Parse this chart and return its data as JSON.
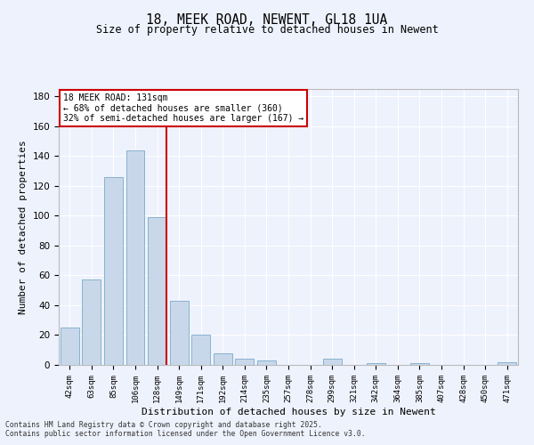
{
  "title": "18, MEEK ROAD, NEWENT, GL18 1UA",
  "subtitle": "Size of property relative to detached houses in Newent",
  "xlabel": "Distribution of detached houses by size in Newent",
  "ylabel": "Number of detached properties",
  "categories": [
    "42sqm",
    "63sqm",
    "85sqm",
    "106sqm",
    "128sqm",
    "149sqm",
    "171sqm",
    "192sqm",
    "214sqm",
    "235sqm",
    "257sqm",
    "278sqm",
    "299sqm",
    "321sqm",
    "342sqm",
    "364sqm",
    "385sqm",
    "407sqm",
    "428sqm",
    "450sqm",
    "471sqm"
  ],
  "values": [
    25,
    57,
    126,
    144,
    99,
    43,
    20,
    8,
    4,
    3,
    0,
    0,
    4,
    0,
    1,
    0,
    1,
    0,
    0,
    0,
    2
  ],
  "bar_color": "#c8d8ea",
  "bar_edge_color": "#7aaac8",
  "marker_line_index": 4,
  "marker_label": "18 MEEK ROAD: 131sqm",
  "annotation_line1": "← 68% of detached houses are smaller (360)",
  "annotation_line2": "32% of semi-detached houses are larger (167) →",
  "annotation_box_color": "#ffffff",
  "annotation_box_edge": "#cc0000",
  "marker_line_color": "#cc0000",
  "ylim": [
    0,
    185
  ],
  "yticks": [
    0,
    20,
    40,
    60,
    80,
    100,
    120,
    140,
    160,
    180
  ],
  "background_color": "#eef2fc",
  "grid_color": "#ffffff",
  "footnote1": "Contains HM Land Registry data © Crown copyright and database right 2025.",
  "footnote2": "Contains public sector information licensed under the Open Government Licence v3.0."
}
